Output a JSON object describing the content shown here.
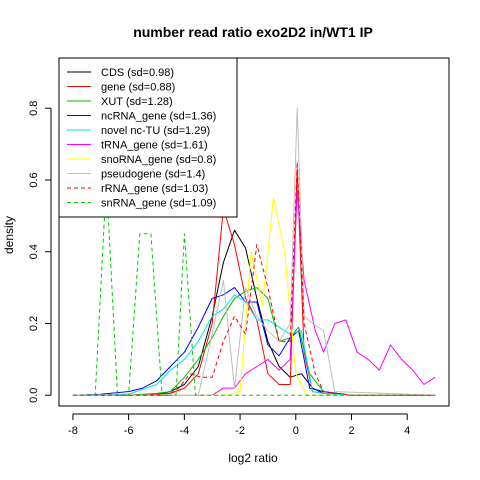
{
  "chart_data": {
    "type": "line",
    "title": "number read ratio exo2D2 in/WT1 IP",
    "xlabel": "log2 ratio",
    "ylabel": "density",
    "xlim": [
      -8.5,
      5.5
    ],
    "ylim": [
      -0.03,
      0.94
    ],
    "x_ticks": [
      -8,
      -6,
      -4,
      -2,
      0,
      2,
      4
    ],
    "y_ticks": [
      0.0,
      0.2,
      0.4,
      0.6,
      0.8
    ],
    "x_tick_labels": [
      "-8",
      "-6",
      "-4",
      "-2",
      "0",
      "2",
      "4"
    ],
    "y_tick_labels": [
      "0.0",
      "0.2",
      "0.4",
      "0.6",
      "0.8"
    ],
    "legend_position": "top-left",
    "series": [
      {
        "name": "CDS (sd=0.98)",
        "color": "#000000",
        "dash": "solid",
        "x": [
          -8,
          -7,
          -6,
          -5,
          -4.5,
          -4,
          -3.5,
          -3,
          -2.6,
          -2.2,
          -1.8,
          -1.4,
          -1,
          -0.6,
          -0.2,
          0.2,
          0.6,
          1,
          2,
          3,
          5
        ],
        "y": [
          0,
          0,
          0,
          0.003,
          0.01,
          0.03,
          0.08,
          0.22,
          0.37,
          0.46,
          0.41,
          0.27,
          0.15,
          0.08,
          0.05,
          0.06,
          0.02,
          0.005,
          0,
          0,
          0
        ]
      },
      {
        "name": "gene (sd=0.88)",
        "color": "#ff0000",
        "dash": "solid",
        "x": [
          -8,
          -6,
          -4.5,
          -4,
          -3.5,
          -3,
          -2.6,
          -2.2,
          -1.8,
          -1.4,
          -1,
          -0.6,
          -0.2,
          0.05,
          0.3,
          0.6,
          1,
          2,
          3,
          5
        ],
        "y": [
          0,
          0,
          0.005,
          0.02,
          0.06,
          0.2,
          0.52,
          0.42,
          0.27,
          0.21,
          0.06,
          0.03,
          0.03,
          0.63,
          0.12,
          0.01,
          0.005,
          0,
          0,
          0
        ]
      },
      {
        "name": "XUT (sd=1.28)",
        "color": "#00bb00",
        "dash": "solid",
        "x": [
          -8,
          -6,
          -5,
          -4.5,
          -4,
          -3.5,
          -3,
          -2.6,
          -2.2,
          -1.8,
          -1.4,
          -1,
          -0.6,
          -0.2,
          0.1,
          0.5,
          1,
          2,
          3,
          5
        ],
        "y": [
          0,
          0,
          0.005,
          0.01,
          0.05,
          0.1,
          0.16,
          0.22,
          0.27,
          0.29,
          0.3,
          0.27,
          0.15,
          0.16,
          0.19,
          0.06,
          0.01,
          0,
          0,
          0
        ]
      },
      {
        "name": "ncRNA_gene (sd=1.36)",
        "color": "#0000ff",
        "dash": "solid",
        "x": [
          -8,
          -7,
          -6,
          -5.5,
          -5,
          -4.5,
          -4,
          -3.5,
          -3,
          -2.6,
          -2.2,
          -1.8,
          -1.4,
          -1,
          -0.6,
          -0.2,
          0.1,
          0.5,
          1,
          2,
          5
        ],
        "y": [
          0,
          0.003,
          0.01,
          0.02,
          0.04,
          0.08,
          0.12,
          0.19,
          0.27,
          0.28,
          0.3,
          0.26,
          0.26,
          0.14,
          0.11,
          0.16,
          0.18,
          0.02,
          0.01,
          0,
          0
        ]
      },
      {
        "name": "novel nc-TU (sd=1.29)",
        "color": "#00e5e5",
        "dash": "solid",
        "x": [
          -8,
          -6,
          -5,
          -4.5,
          -4,
          -3.5,
          -3,
          -2.6,
          -2.2,
          -1.8,
          -1.4,
          -1,
          -0.6,
          -0.2,
          0.2,
          0.6,
          1,
          2,
          5
        ],
        "y": [
          0,
          0.003,
          0.03,
          0.07,
          0.1,
          0.15,
          0.22,
          0.24,
          0.28,
          0.26,
          0.21,
          0.21,
          0.19,
          0.17,
          0.18,
          0.01,
          0.005,
          0,
          0
        ]
      },
      {
        "name": "tRNA_gene (sd=1.61)",
        "color": "#ff00ff",
        "dash": "solid",
        "x": [
          -8,
          -3,
          -2.6,
          -2.2,
          -1.8,
          -1.4,
          -1,
          -0.6,
          -0.2,
          0.05,
          0.3,
          0.7,
          1,
          1.4,
          1.8,
          2.2,
          2.6,
          3,
          3.4,
          3.8,
          4.2,
          4.6,
          5
        ],
        "y": [
          0,
          0,
          0.02,
          0.02,
          0.06,
          0.08,
          0.1,
          0.07,
          0.1,
          0.57,
          0.32,
          0.18,
          0.12,
          0.2,
          0.21,
          0.12,
          0.1,
          0.07,
          0.14,
          0.1,
          0.07,
          0.03,
          0.05
        ]
      },
      {
        "name": "snoRNA_gene (sd=0.8)",
        "color": "#ffff00",
        "dash": "solid",
        "x": [
          -8,
          -3,
          -2.5,
          -2,
          -1.6,
          -1.2,
          -0.8,
          -0.4,
          0,
          0.4,
          1,
          2,
          5
        ],
        "y": [
          0,
          0,
          0,
          0.01,
          0.4,
          0.25,
          0.55,
          0.4,
          0.06,
          0,
          0,
          0,
          0
        ]
      },
      {
        "name": "pseudogene (sd=1.4)",
        "color": "#bebebe",
        "dash": "solid",
        "x": [
          -8,
          -3.5,
          -3,
          -2.6,
          -2.2,
          -1.8,
          -1.4,
          -1,
          -0.6,
          -0.2,
          0.05,
          0.3,
          0.6,
          1,
          1.4,
          5
        ],
        "y": [
          0,
          0,
          0.17,
          0.32,
          0.02,
          0.3,
          0.22,
          0.18,
          0.15,
          0.2,
          0.8,
          0.22,
          0.2,
          0.18,
          0.01,
          0
        ]
      },
      {
        "name": "rRNA_gene (sd=1.03)",
        "color": "#ff0000",
        "dash": "dashed",
        "x": [
          -8,
          -4.6,
          -4.2,
          -3.8,
          -3.4,
          -3.0,
          -2.6,
          -2.2,
          -1.8,
          -1.4,
          -1.0,
          -0.6,
          -0.2,
          0.05,
          0.3,
          0.7,
          1,
          2,
          5
        ],
        "y": [
          0,
          0,
          0.02,
          0.06,
          0.05,
          0.05,
          0.15,
          0.22,
          0.17,
          0.42,
          0.3,
          0.15,
          0.15,
          0.65,
          0.2,
          0.06,
          0.01,
          0,
          0
        ]
      },
      {
        "name": "snRNA_gene (sd=1.09)",
        "color": "#00cc00",
        "dash": "dashed",
        "x": [
          -8,
          -7.2,
          -6.8,
          -6.4,
          -6.0,
          -5.6,
          -5.2,
          -4.8,
          -4.3,
          -4.0,
          -3.6,
          -3.2,
          0,
          2,
          5
        ],
        "y": [
          0,
          0,
          0.6,
          0,
          0,
          0.45,
          0.45,
          0,
          0,
          0.45,
          0,
          0,
          0,
          0,
          0
        ]
      }
    ]
  }
}
